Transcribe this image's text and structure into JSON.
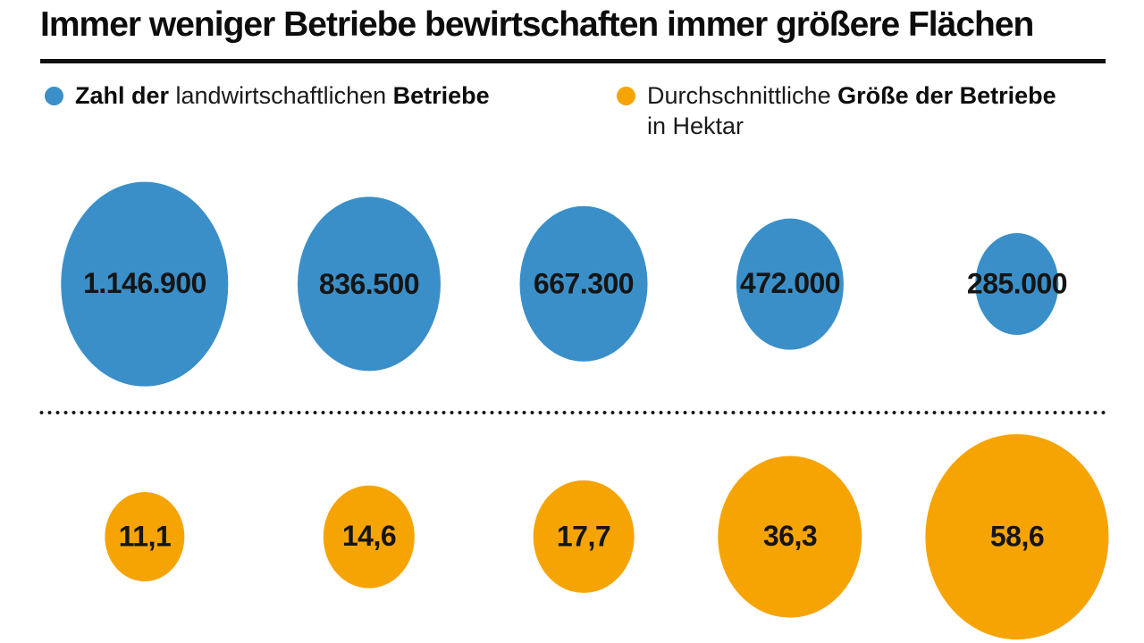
{
  "title": "Immer weniger Betriebe bewirtschaften immer größere Flächen",
  "legend": {
    "betriebe": {
      "bold1": "Zahl der ",
      "regular": "landwirtschaftlichen ",
      "bold2": "Betriebe"
    },
    "hektar": {
      "regular1": "Durchschnittliche ",
      "bold": "Größe der Betriebe",
      "line2": "in Hektar"
    }
  },
  "colors": {
    "blue": "#3a8fc8",
    "orange": "#f6a404",
    "text": "#151515",
    "rule": "#111111"
  },
  "chart_data": {
    "type": "scatter",
    "subtype": "proportional-bubble-rows",
    "title": "Immer weniger Betriebe bewirtschaften immer größere Flächen",
    "categories_shown": false,
    "legend_position": "top",
    "grid": false,
    "separator": "dotted-line-between-rows",
    "series": [
      {
        "name": "Zahl der landwirtschaftlichen Betriebe",
        "color": "#3a8fc8",
        "values": [
          1146900,
          836500,
          667300,
          472000,
          285000
        ],
        "labels": [
          "1.146.900",
          "836.500",
          "667.300",
          "472.000",
          "285.000"
        ]
      },
      {
        "name": "Durchschnittliche Größe der Betriebe in Hektar",
        "color": "#f6a404",
        "values": [
          11.1,
          14.6,
          17.7,
          36.3,
          58.6
        ],
        "labels": [
          "11,1",
          "14,6",
          "17,7",
          "36,3",
          "58,6"
        ]
      }
    ]
  }
}
